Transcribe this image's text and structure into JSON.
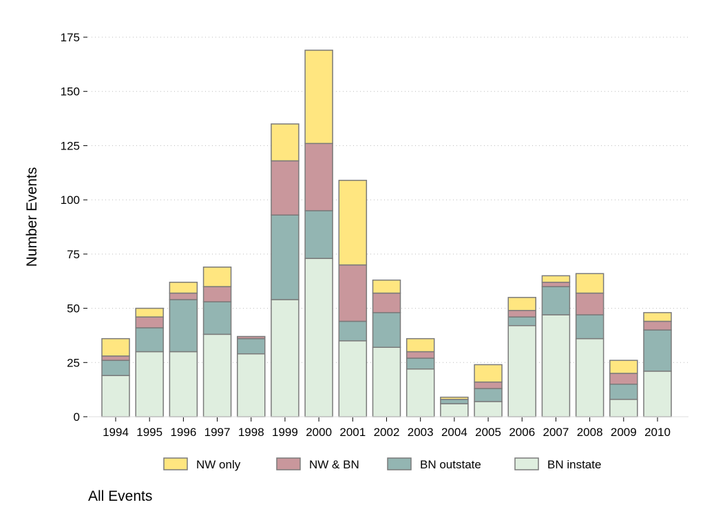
{
  "chart_data": {
    "type": "bar",
    "stacked": true,
    "title": "",
    "xlabel": "",
    "ylabel": "Number Events",
    "note": "All Events",
    "ylim": [
      0,
      175
    ],
    "yticks": [
      0,
      25,
      50,
      75,
      100,
      125,
      150,
      175
    ],
    "grid": true,
    "legend_position": "bottom",
    "categories": [
      "1994",
      "1995",
      "1996",
      "1997",
      "1998",
      "1999",
      "2000",
      "2001",
      "2002",
      "2003",
      "2004",
      "2005",
      "2006",
      "2007",
      "2008",
      "2009",
      "2010"
    ],
    "series": [
      {
        "name": "BN instate",
        "color": "#dfeedf",
        "values": [
          19,
          30,
          30,
          38,
          29,
          54,
          73,
          35,
          32,
          22,
          6,
          7,
          42,
          47,
          36,
          8,
          21
        ]
      },
      {
        "name": "BN outstate",
        "color": "#93b5b2",
        "values": [
          7,
          11,
          24,
          15,
          7,
          39,
          22,
          9,
          16,
          5,
          2,
          6,
          4,
          13,
          11,
          7,
          19
        ]
      },
      {
        "name": "NW & BN",
        "color": "#c9979c",
        "values": [
          2,
          5,
          3,
          7,
          1,
          25,
          31,
          26,
          9,
          3,
          0,
          3,
          3,
          2,
          10,
          5,
          4
        ]
      },
      {
        "name": "NW only",
        "color": "#ffe680",
        "values": [
          8,
          4,
          5,
          9,
          0,
          17,
          43,
          39,
          6,
          6,
          1,
          8,
          6,
          3,
          9,
          6,
          4
        ]
      }
    ],
    "legend_order": [
      "NW only",
      "NW & BN",
      "BN outstate",
      "BN instate"
    ]
  }
}
